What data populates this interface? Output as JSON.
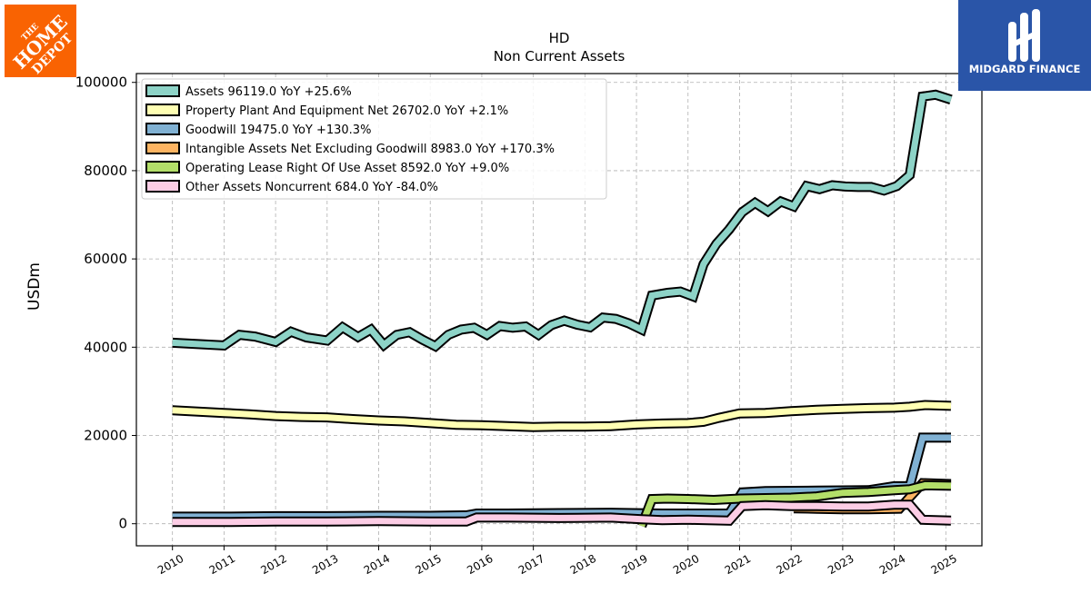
{
  "brand": {
    "company_logo_text": "THE HOME DEPOT",
    "company_logo_color": "#f96302",
    "publisher_logo_text": "MIDGARD FINANCE",
    "publisher_logo_color": "#2a55a8"
  },
  "chart_data": {
    "type": "line",
    "title": "HD",
    "subtitle": "Non Current  Assets",
    "xlabel": "",
    "ylabel": "USDm",
    "xlim": [
      2009.3,
      2025.7
    ],
    "ylim": [
      -5000,
      102000
    ],
    "x_ticks": [
      "2010",
      "2011",
      "2012",
      "2013",
      "2014",
      "2015",
      "2016",
      "2017",
      "2018",
      "2019",
      "2020",
      "2021",
      "2022",
      "2023",
      "2024",
      "2025"
    ],
    "y_ticks": [
      "0",
      "20000",
      "40000",
      "60000",
      "80000",
      "100000"
    ],
    "y_tick_values": [
      0,
      20000,
      40000,
      60000,
      80000,
      100000
    ],
    "grid": true,
    "legend_position": "top-left",
    "series": [
      {
        "name": "Assets  96119.0 YoY +25.6%",
        "color": "#8dd3c7",
        "points": [
          [
            2010,
            41000
          ],
          [
            2011,
            40400
          ],
          [
            2011.3,
            42800
          ],
          [
            2011.6,
            42400
          ],
          [
            2012,
            41200
          ],
          [
            2012.3,
            43500
          ],
          [
            2012.6,
            42200
          ],
          [
            2013,
            41500
          ],
          [
            2013.3,
            44500
          ],
          [
            2013.6,
            42300
          ],
          [
            2013.85,
            44000
          ],
          [
            2014.1,
            40500
          ],
          [
            2014.35,
            42800
          ],
          [
            2014.6,
            43400
          ],
          [
            2014.85,
            41700
          ],
          [
            2015.1,
            40200
          ],
          [
            2015.35,
            42800
          ],
          [
            2015.6,
            44000
          ],
          [
            2015.85,
            44400
          ],
          [
            2016.1,
            42800
          ],
          [
            2016.35,
            44800
          ],
          [
            2016.6,
            44400
          ],
          [
            2016.85,
            44700
          ],
          [
            2017.1,
            42800
          ],
          [
            2017.35,
            45000
          ],
          [
            2017.6,
            46000
          ],
          [
            2017.85,
            45100
          ],
          [
            2018.1,
            44500
          ],
          [
            2018.35,
            46700
          ],
          [
            2018.6,
            46400
          ],
          [
            2018.85,
            45400
          ],
          [
            2019.1,
            44000
          ],
          [
            2019.3,
            51700
          ],
          [
            2019.6,
            52300
          ],
          [
            2019.85,
            52600
          ],
          [
            2020.1,
            51500
          ],
          [
            2020.3,
            58800
          ],
          [
            2020.55,
            63400
          ],
          [
            2020.8,
            66700
          ],
          [
            2021.05,
            70600
          ],
          [
            2021.3,
            72700
          ],
          [
            2021.55,
            70800
          ],
          [
            2021.8,
            73000
          ],
          [
            2022.05,
            71900
          ],
          [
            2022.3,
            76500
          ],
          [
            2022.55,
            75800
          ],
          [
            2022.8,
            76700
          ],
          [
            2023.05,
            76400
          ],
          [
            2023.3,
            76300
          ],
          [
            2023.55,
            76300
          ],
          [
            2023.8,
            75500
          ],
          [
            2024.05,
            76500
          ],
          [
            2024.3,
            79000
          ],
          [
            2024.55,
            96800
          ],
          [
            2024.8,
            97200
          ],
          [
            2025.1,
            96100
          ]
        ]
      },
      {
        "name": "Property Plant And Equipment Net  26702.0 YoY +2.1%",
        "color": "#ffffb3",
        "points": [
          [
            2010,
            25700
          ],
          [
            2011,
            25100
          ],
          [
            2011.5,
            24800
          ],
          [
            2012,
            24400
          ],
          [
            2012.5,
            24200
          ],
          [
            2013,
            24100
          ],
          [
            2013.5,
            23700
          ],
          [
            2014,
            23400
          ],
          [
            2014.5,
            23200
          ],
          [
            2015,
            22800
          ],
          [
            2015.5,
            22400
          ],
          [
            2016,
            22300
          ],
          [
            2016.5,
            22100
          ],
          [
            2017,
            21900
          ],
          [
            2017.5,
            22000
          ],
          [
            2018,
            22000
          ],
          [
            2018.5,
            22100
          ],
          [
            2019,
            22500
          ],
          [
            2019.5,
            22700
          ],
          [
            2020,
            22800
          ],
          [
            2020.3,
            23100
          ],
          [
            2020.6,
            24000
          ],
          [
            2021,
            25000
          ],
          [
            2021.5,
            25100
          ],
          [
            2022,
            25500
          ],
          [
            2022.5,
            25800
          ],
          [
            2023,
            26000
          ],
          [
            2023.5,
            26200
          ],
          [
            2024,
            26300
          ],
          [
            2024.3,
            26500
          ],
          [
            2024.6,
            26900
          ],
          [
            2025.1,
            26700
          ]
        ]
      },
      {
        "name": "Goodwill  19475.0 YoY +130.3%",
        "color": "#80b1d3",
        "points": [
          [
            2010,
            1600
          ],
          [
            2011,
            1600
          ],
          [
            2012,
            1700
          ],
          [
            2013,
            1700
          ],
          [
            2014,
            1800
          ],
          [
            2015,
            1800
          ],
          [
            2015.7,
            1900
          ],
          [
            2015.9,
            2300
          ],
          [
            2016.5,
            2300
          ],
          [
            2017.5,
            2400
          ],
          [
            2018.5,
            2500
          ],
          [
            2019.5,
            2300
          ],
          [
            2020.5,
            2300
          ],
          [
            2020.8,
            2300
          ],
          [
            2021.05,
            7100
          ],
          [
            2021.5,
            7400
          ],
          [
            2022.5,
            7500
          ],
          [
            2023.5,
            7600
          ],
          [
            2024.0,
            8500
          ],
          [
            2024.3,
            8500
          ],
          [
            2024.55,
            19500
          ],
          [
            2025.1,
            19500
          ]
        ]
      },
      {
        "name": "Intangible Assets Net Excluding Goodwill  8983.0 YoY +170.3%",
        "color": "#fdb462",
        "points": [
          [
            2022.05,
            3500
          ],
          [
            2022.5,
            3400
          ],
          [
            2023,
            3300
          ],
          [
            2023.5,
            3300
          ],
          [
            2024.1,
            3400
          ],
          [
            2024.3,
            6000
          ],
          [
            2024.55,
            9200
          ],
          [
            2025.1,
            9000
          ]
        ]
      },
      {
        "name": "Operating Lease Right Of Use Asset  8592.0 YoY +9.0%",
        "color": "#b3de69",
        "points": [
          [
            2019.1,
            -500
          ],
          [
            2019.3,
            5600
          ],
          [
            2019.6,
            5700
          ],
          [
            2020,
            5600
          ],
          [
            2020.5,
            5400
          ],
          [
            2021,
            5700
          ],
          [
            2021.5,
            5800
          ],
          [
            2022,
            5900
          ],
          [
            2022.5,
            6200
          ],
          [
            2023,
            7000
          ],
          [
            2023.5,
            7200
          ],
          [
            2024,
            7600
          ],
          [
            2024.3,
            7800
          ],
          [
            2024.6,
            8700
          ],
          [
            2025.1,
            8600
          ]
        ]
      },
      {
        "name": "Other Assets Noncurrent  684.0 YoY -84.0%",
        "color": "#fccde5",
        "points": [
          [
            2010,
            400
          ],
          [
            2011,
            400
          ],
          [
            2012,
            500
          ],
          [
            2013,
            500
          ],
          [
            2014,
            600
          ],
          [
            2015,
            500
          ],
          [
            2015.7,
            500
          ],
          [
            2015.9,
            1400
          ],
          [
            2016.5,
            1400
          ],
          [
            2017.5,
            1300
          ],
          [
            2018.5,
            1400
          ],
          [
            2019.1,
            1000
          ],
          [
            2019.5,
            800
          ],
          [
            2020,
            900
          ],
          [
            2020.8,
            700
          ],
          [
            2021.05,
            4000
          ],
          [
            2021.5,
            4200
          ],
          [
            2022,
            4000
          ],
          [
            2022.5,
            4000
          ],
          [
            2023,
            3900
          ],
          [
            2023.5,
            3900
          ],
          [
            2024.0,
            4300
          ],
          [
            2024.3,
            4300
          ],
          [
            2024.55,
            900
          ],
          [
            2025.1,
            700
          ]
        ]
      }
    ]
  }
}
